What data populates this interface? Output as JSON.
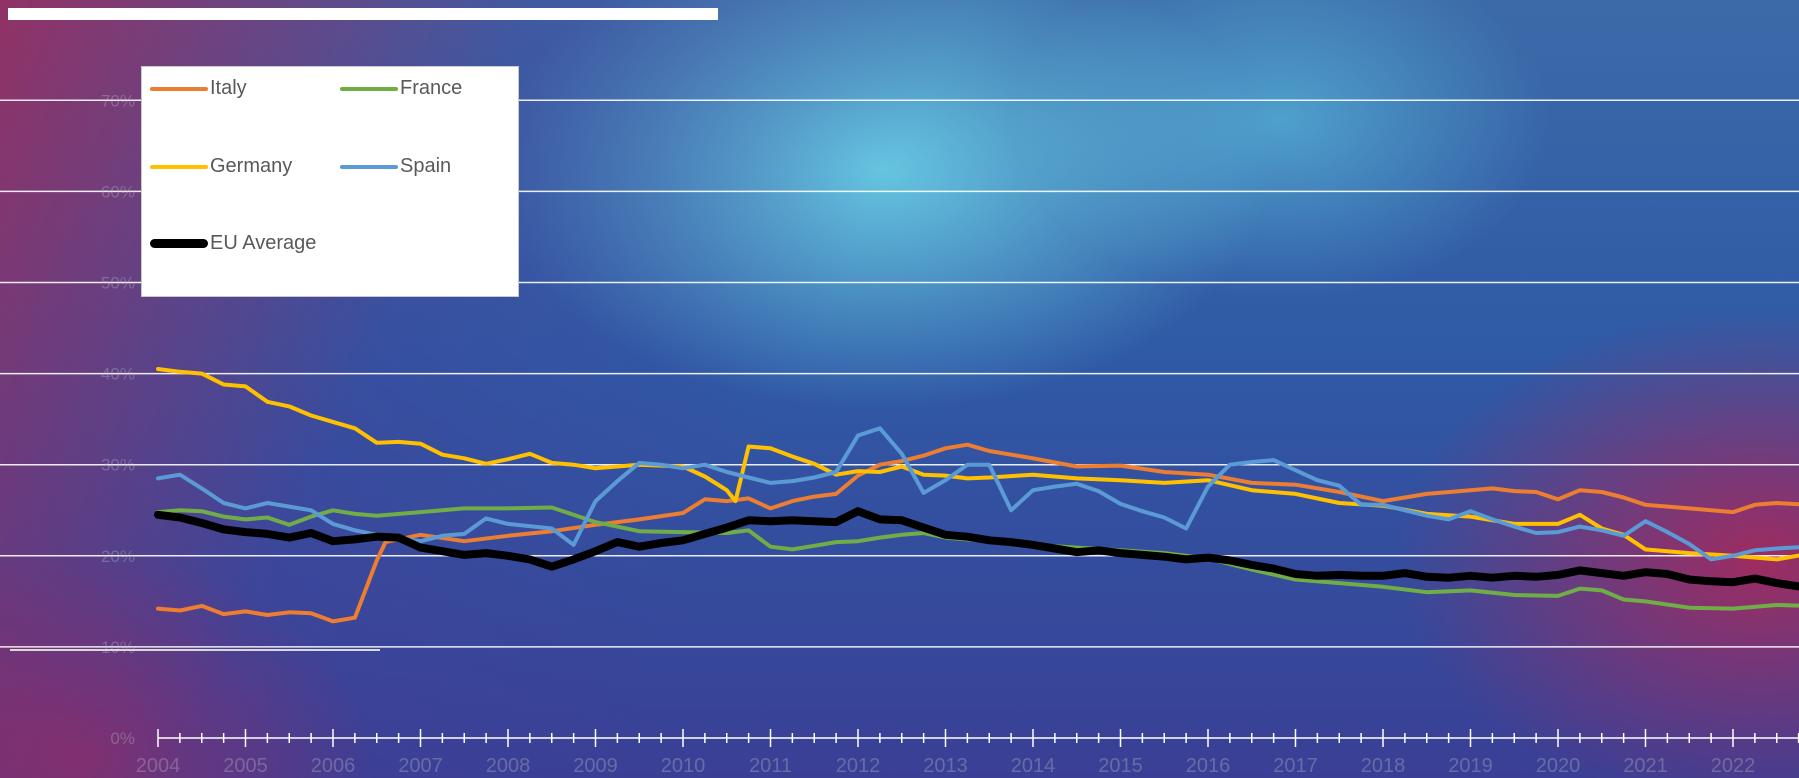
{
  "chart_data": {
    "type": "line",
    "title": "",
    "xlabel": "",
    "ylabel": "",
    "ylim": [
      0,
      80
    ],
    "y_ticks": [
      "0%",
      "10%",
      "20%",
      "30%",
      "40%",
      "50%",
      "60%",
      "70%"
    ],
    "x_ticks": [
      "2004",
      "2005",
      "2006",
      "2007",
      "2008",
      "2009",
      "2010",
      "2011",
      "2012",
      "2013",
      "2014",
      "2015",
      "2016",
      "2017",
      "2018",
      "2019",
      "2020",
      "2021",
      "2022"
    ],
    "x_range": [
      2004,
      2022.85
    ],
    "grid": true,
    "legend_placement": "top-left",
    "series": [
      {
        "name": "Italy",
        "color": "#ed7d31",
        "width": 4,
        "x": [
          2004,
          2004.25,
          2004.5,
          2004.75,
          2005,
          2005.25,
          2005.5,
          2005.75,
          2006,
          2006.25,
          2006.5,
          2006.6,
          2007,
          2007.5,
          2008,
          2008.5,
          2009,
          2009.5,
          2010,
          2010.25,
          2010.5,
          2010.75,
          2011,
          2011.25,
          2011.5,
          2011.75,
          2012,
          2012.25,
          2012.5,
          2012.75,
          2013,
          2013.25,
          2013.5,
          2014,
          2014.5,
          2015,
          2015.5,
          2016,
          2016.5,
          2017,
          2017.5,
          2018,
          2018.5,
          2019,
          2019.25,
          2019.5,
          2019.75,
          2020,
          2020.25,
          2020.5,
          2020.75,
          2021,
          2021.5,
          2022,
          2022.25,
          2022.5,
          2022.85
        ],
        "values": [
          14.2,
          14.0,
          14.5,
          13.6,
          13.9,
          13.5,
          13.8,
          13.7,
          12.8,
          13.2,
          19.5,
          21.5,
          22.3,
          21.6,
          22.2,
          22.7,
          23.4,
          24.0,
          24.7,
          26.2,
          26.0,
          26.3,
          25.2,
          26.0,
          26.5,
          26.8,
          28.8,
          30.0,
          30.4,
          31.0,
          31.8,
          32.2,
          31.5,
          30.7,
          29.8,
          29.9,
          29.2,
          28.9,
          28.0,
          27.8,
          27.0,
          26.0,
          26.8,
          27.2,
          27.4,
          27.1,
          27.0,
          26.2,
          27.2,
          27.0,
          26.4,
          25.6,
          25.2,
          24.8,
          25.6,
          25.8,
          25.6
        ]
      },
      {
        "name": "France",
        "color": "#70ad47",
        "width": 4,
        "x": [
          2004,
          2004.25,
          2004.5,
          2004.75,
          2005,
          2005.25,
          2005.5,
          2005.75,
          2006,
          2006.25,
          2006.5,
          2007,
          2007.5,
          2008,
          2008.5,
          2009,
          2009.5,
          2010,
          2010.5,
          2010.75,
          2011,
          2011.25,
          2011.5,
          2011.75,
          2012,
          2012.25,
          2012.5,
          2012.75,
          2013,
          2013.5,
          2014,
          2014.5,
          2015,
          2015.5,
          2016,
          2016.5,
          2017,
          2017.5,
          2018,
          2018.5,
          2019,
          2019.5,
          2020,
          2020.25,
          2020.5,
          2020.75,
          2021,
          2021.5,
          2022,
          2022.5,
          2022.85
        ],
        "values": [
          24.8,
          25.0,
          24.9,
          24.3,
          24.0,
          24.2,
          23.4,
          24.3,
          25.0,
          24.6,
          24.4,
          24.8,
          25.2,
          25.2,
          25.3,
          23.7,
          22.7,
          22.6,
          22.5,
          22.8,
          21.0,
          20.7,
          21.1,
          21.5,
          21.6,
          22.0,
          22.3,
          22.5,
          22.0,
          21.6,
          21.2,
          20.9,
          20.6,
          20.3,
          19.7,
          18.5,
          17.4,
          17.0,
          16.6,
          16.0,
          16.2,
          15.7,
          15.6,
          16.4,
          16.2,
          15.2,
          15.0,
          14.3,
          14.2,
          14.6,
          14.5
        ]
      },
      {
        "name": "Germany",
        "color": "#ffc000",
        "width": 4,
        "x": [
          2004,
          2004.25,
          2004.5,
          2004.75,
          2005,
          2005.25,
          2005.5,
          2005.75,
          2006,
          2006.25,
          2006.5,
          2006.75,
          2007,
          2007.25,
          2007.5,
          2007.75,
          2008,
          2008.25,
          2008.5,
          2008.75,
          2009,
          2009.5,
          2010,
          2010.25,
          2010.5,
          2010.6,
          2010.75,
          2011,
          2011.25,
          2011.5,
          2011.75,
          2012,
          2012.25,
          2012.5,
          2012.75,
          2013,
          2013.25,
          2013.5,
          2014,
          2014.5,
          2015,
          2015.5,
          2016,
          2016.5,
          2017,
          2017.5,
          2018,
          2018.5,
          2019,
          2019.5,
          2020,
          2020.25,
          2020.5,
          2020.75,
          2021,
          2021.5,
          2022,
          2022.5,
          2022.85
        ],
        "values": [
          40.5,
          40.2,
          40.0,
          38.8,
          38.6,
          36.9,
          36.4,
          35.4,
          34.7,
          34.0,
          32.4,
          32.5,
          32.3,
          31.1,
          30.7,
          30.1,
          30.6,
          31.2,
          30.2,
          30.0,
          29.6,
          30.0,
          29.8,
          28.7,
          27.2,
          26.0,
          32.0,
          31.8,
          30.9,
          30.1,
          28.9,
          29.3,
          29.2,
          29.8,
          28.9,
          28.8,
          28.5,
          28.6,
          28.9,
          28.5,
          28.3,
          28.0,
          28.3,
          27.2,
          26.8,
          25.8,
          25.5,
          24.6,
          24.3,
          23.5,
          23.5,
          24.5,
          23.0,
          22.3,
          20.7,
          20.3,
          20.0,
          19.6,
          20.2
        ]
      },
      {
        "name": "Spain",
        "color": "#5b9bd5",
        "width": 4,
        "x": [
          2004,
          2004.25,
          2004.5,
          2004.75,
          2005,
          2005.25,
          2005.5,
          2005.75,
          2006,
          2006.25,
          2006.5,
          2007,
          2007.25,
          2007.5,
          2007.75,
          2008,
          2008.5,
          2008.75,
          2009,
          2009.25,
          2009.5,
          2009.75,
          2010,
          2010.25,
          2010.5,
          2010.75,
          2011,
          2011.25,
          2011.5,
          2011.75,
          2012,
          2012.25,
          2012.5,
          2012.75,
          2013,
          2013.25,
          2013.5,
          2013.75,
          2014,
          2014.25,
          2014.5,
          2014.75,
          2015,
          2015.25,
          2015.5,
          2015.75,
          2016,
          2016.25,
          2016.5,
          2016.75,
          2017,
          2017.25,
          2017.5,
          2017.75,
          2018,
          2018.25,
          2018.5,
          2018.75,
          2019,
          2019.25,
          2019.5,
          2019.75,
          2020,
          2020.25,
          2020.5,
          2020.75,
          2021,
          2021.25,
          2021.5,
          2021.75,
          2022,
          2022.25,
          2022.5,
          2022.85
        ],
        "values": [
          28.5,
          28.9,
          27.4,
          25.8,
          25.2,
          25.8,
          25.4,
          25.0,
          23.5,
          22.8,
          22.3,
          21.6,
          22.2,
          22.4,
          24.1,
          23.5,
          23.0,
          21.2,
          26.0,
          28.2,
          30.2,
          30.0,
          29.6,
          30.0,
          29.2,
          28.6,
          28.0,
          28.2,
          28.6,
          29.2,
          33.2,
          34.0,
          31.2,
          26.9,
          28.3,
          30.0,
          30.0,
          25.0,
          27.2,
          27.6,
          27.9,
          27.1,
          25.7,
          24.9,
          24.2,
          23.0,
          27.6,
          30.0,
          30.3,
          30.5,
          29.4,
          28.3,
          27.7,
          25.6,
          25.6,
          25.0,
          24.4,
          24.0,
          24.9,
          24.0,
          23.2,
          22.5,
          22.6,
          23.2,
          22.8,
          22.2,
          23.8,
          22.6,
          21.3,
          19.6,
          20.0,
          20.6,
          20.8,
          21.0
        ]
      },
      {
        "name": "EU Average",
        "color": "#000000",
        "width": 8,
        "x": [
          2004,
          2004.25,
          2004.5,
          2004.75,
          2005,
          2005.25,
          2005.5,
          2005.75,
          2006,
          2006.25,
          2006.5,
          2006.75,
          2007,
          2007.25,
          2007.5,
          2007.75,
          2008,
          2008.25,
          2008.5,
          2008.75,
          2009,
          2009.25,
          2009.5,
          2009.75,
          2010,
          2010.25,
          2010.5,
          2010.75,
          2011,
          2011.25,
          2011.5,
          2011.75,
          2012,
          2012.25,
          2012.5,
          2012.75,
          2013,
          2013.25,
          2013.5,
          2013.75,
          2014,
          2014.25,
          2014.5,
          2014.75,
          2015,
          2015.25,
          2015.5,
          2015.75,
          2016,
          2016.25,
          2016.5,
          2016.75,
          2017,
          2017.25,
          2017.5,
          2017.75,
          2018,
          2018.25,
          2018.5,
          2018.75,
          2019,
          2019.25,
          2019.5,
          2019.75,
          2020,
          2020.25,
          2020.5,
          2020.75,
          2021,
          2021.25,
          2021.5,
          2021.75,
          2022,
          2022.25,
          2022.5,
          2022.85
        ],
        "values": [
          24.5,
          24.2,
          23.6,
          22.9,
          22.6,
          22.4,
          22.0,
          22.5,
          21.6,
          21.8,
          22.1,
          22.0,
          20.9,
          20.5,
          20.1,
          20.3,
          20.0,
          19.6,
          18.8,
          19.6,
          20.5,
          21.5,
          21.0,
          21.4,
          21.7,
          22.4,
          23.1,
          23.9,
          23.8,
          23.9,
          23.8,
          23.7,
          24.9,
          24.0,
          23.9,
          23.1,
          22.3,
          22.1,
          21.7,
          21.5,
          21.2,
          20.8,
          20.4,
          20.6,
          20.3,
          20.1,
          19.9,
          19.6,
          19.8,
          19.5,
          19.0,
          18.6,
          18.0,
          17.8,
          17.9,
          17.8,
          17.8,
          18.1,
          17.7,
          17.6,
          17.8,
          17.6,
          17.8,
          17.7,
          17.9,
          18.4,
          18.1,
          17.8,
          18.2,
          18.0,
          17.4,
          17.2,
          17.1,
          17.5,
          17.0,
          16.5
        ]
      }
    ]
  }
}
